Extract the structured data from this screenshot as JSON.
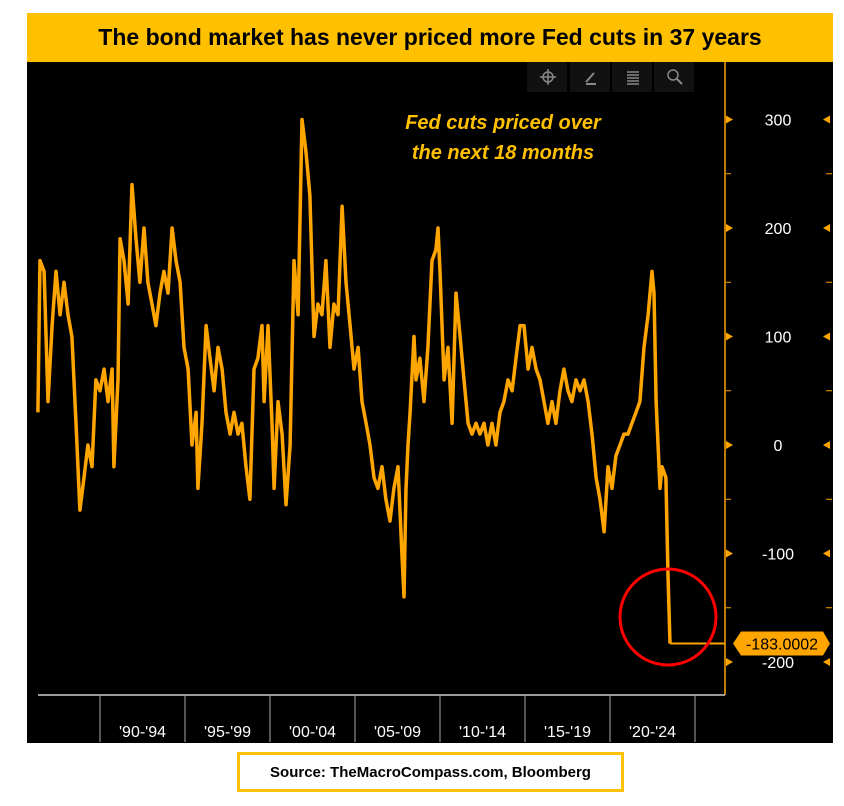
{
  "title": "The bond market has never priced more Fed cuts in 37 years",
  "source": "Source: TheMacroCompass.com, Bloomberg",
  "toolbar": {
    "icons": [
      "crosshair-icon",
      "pencil-icon",
      "news-icon",
      "search-icon"
    ]
  },
  "chart_data": {
    "type": "line",
    "title": "",
    "annotation_lines": [
      "Fed cuts priced over",
      "the next 18 months"
    ],
    "ylim": [
      -230,
      330
    ],
    "yticks": [
      300,
      200,
      100,
      0,
      -100,
      -200
    ],
    "ytick_labels": [
      "300",
      "200",
      "100",
      "0",
      "-100",
      "-200"
    ],
    "y_axis_position": "right",
    "xlim": [
      1986.35,
      2026.6
    ],
    "x_bands": [
      [
        1990,
        1995
      ],
      [
        1995,
        2000
      ],
      [
        2000,
        2005
      ],
      [
        2005,
        2010
      ],
      [
        2010,
        2015
      ],
      [
        2015,
        2020
      ],
      [
        2020,
        2025
      ]
    ],
    "xtick_labels": [
      "'90-'94",
      "'95-'99",
      "'00-'04",
      "'05-'09",
      "'10-'14",
      "'15-'19",
      "'20-'24"
    ],
    "grid": false,
    "last_value_label": "-183.0002",
    "line_color": "#FFA500",
    "highlight_color": "#FF0000",
    "series": [
      {
        "x": [
          1986.35,
          1986.47,
          1986.71,
          1986.94,
          1987.18,
          1987.41,
          1987.65,
          1987.88,
          1988.12,
          1988.35,
          1988.59,
          1988.82,
          1989.06,
          1989.29,
          1989.53,
          1989.76,
          1990,
          1990.24,
          1990.47,
          1990.71,
          1990.82,
          1991.06,
          1991.18,
          1991.41,
          1991.65,
          1991.88,
          1992.12,
          1992.35,
          1992.59,
          1992.82,
          1993.06,
          1993.29,
          1993.53,
          1993.76,
          1994,
          1994.24,
          1994.47,
          1994.71,
          1994.94,
          1995.18,
          1995.41,
          1995.65,
          1995.76,
          1996,
          1996.24,
          1996.47,
          1996.71,
          1996.94,
          1997.18,
          1997.41,
          1997.65,
          1997.88,
          1998.12,
          1998.35,
          1998.59,
          1998.82,
          1999.06,
          1999.29,
          1999.53,
          1999.65,
          1999.88,
          2000.12,
          2000.24,
          2000.47,
          2000.71,
          2000.94,
          2001.18,
          2001.41,
          2001.65,
          2001.88,
          2002.12,
          2002.35,
          2002.59,
          2002.82,
          2003.06,
          2003.29,
          2003.53,
          2003.76,
          2004,
          2004.24,
          2004.47,
          2004.71,
          2004.94,
          2005.18,
          2005.41,
          2005.65,
          2005.88,
          2006.12,
          2006.35,
          2006.59,
          2006.82,
          2007.06,
          2007.29,
          2007.53,
          2007.76,
          2007.88,
          2008,
          2008.12,
          2008.24,
          2008.47,
          2008.59,
          2008.82,
          2009.06,
          2009.29,
          2009.53,
          2009.76,
          2009.88,
          2010,
          2010.24,
          2010.47,
          2010.71,
          2010.94,
          2011.18,
          2011.41,
          2011.65,
          2011.88,
          2012.12,
          2012.35,
          2012.59,
          2012.82,
          2013.06,
          2013.29,
          2013.53,
          2013.76,
          2014,
          2014.24,
          2014.47,
          2014.71,
          2014.94,
          2015.18,
          2015.41,
          2015.65,
          2015.88,
          2016.12,
          2016.35,
          2016.59,
          2016.82,
          2017.06,
          2017.29,
          2017.53,
          2017.76,
          2018,
          2018.24,
          2018.47,
          2018.71,
          2018.94,
          2019.18,
          2019.41,
          2019.65,
          2019.88,
          2020.12,
          2020.35,
          2020.59,
          2020.82,
          2021.06,
          2021.29,
          2021.53,
          2021.76,
          2022,
          2022.24,
          2022.47,
          2022.59,
          2022.71,
          2022.94,
          2023.06,
          2023.29,
          2023.41,
          2023.53
        ],
        "y": [
          30,
          170,
          160,
          40,
          110,
          160,
          120,
          150,
          120,
          100,
          20,
          -60,
          -30,
          0,
          -20,
          60,
          50,
          70,
          40,
          70,
          -20,
          60,
          190,
          170,
          130,
          240,
          190,
          150,
          200,
          150,
          130,
          110,
          140,
          160,
          140,
          200,
          170,
          150,
          90,
          70,
          0,
          30,
          -40,
          20,
          110,
          80,
          50,
          90,
          70,
          30,
          10,
          30,
          10,
          20,
          -20,
          -50,
          70,
          80,
          110,
          40,
          110,
          20,
          -40,
          40,
          10,
          -55,
          0,
          170,
          120,
          300,
          270,
          230,
          100,
          130,
          120,
          170,
          90,
          130,
          120,
          220,
          150,
          110,
          70,
          90,
          40,
          20,
          0,
          -30,
          -40,
          -20,
          -50,
          -70,
          -40,
          -20,
          -100,
          -140,
          -40,
          0,
          30,
          100,
          60,
          80,
          40,
          90,
          170,
          180,
          200,
          160,
          60,
          90,
          20,
          140,
          100,
          60,
          20,
          10,
          20,
          10,
          20,
          0,
          20,
          0,
          30,
          40,
          60,
          50,
          80,
          110,
          110,
          70,
          90,
          70,
          60,
          40,
          20,
          40,
          20,
          50,
          70,
          50,
          40,
          60,
          50,
          60,
          40,
          10,
          -30,
          -50,
          -80,
          -20,
          -40,
          -10,
          0,
          10,
          10,
          20,
          30,
          40,
          90,
          120,
          160,
          140,
          40,
          -40,
          -20,
          -30,
          -120,
          -183
        ]
      }
    ]
  }
}
